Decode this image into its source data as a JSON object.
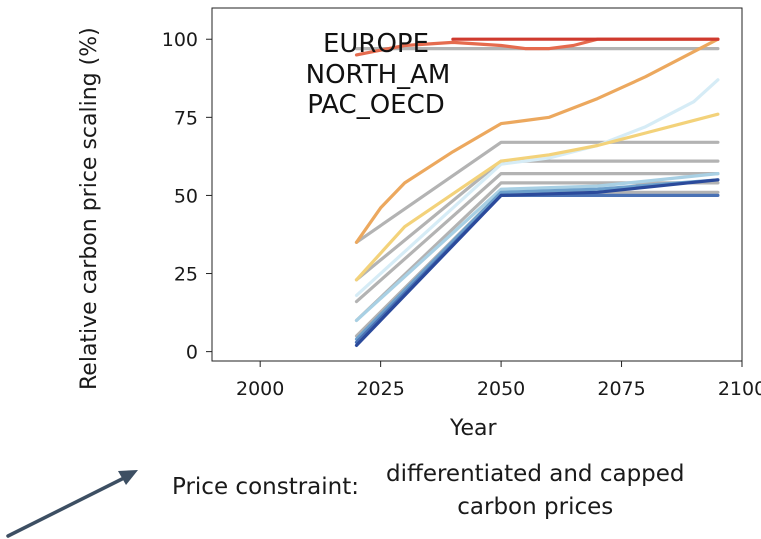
{
  "chart_data": {
    "type": "line",
    "xlabel": "Year",
    "ylabel": "Relative carbon price scaling (%)",
    "xlim": [
      1990,
      2100
    ],
    "ylim": [
      -3,
      110
    ],
    "xticks": [
      2000,
      2025,
      2050,
      2075,
      2100
    ],
    "yticks": [
      0,
      25,
      50,
      75,
      100
    ],
    "grid": false,
    "annotations": [
      "EUROPE",
      "NORTH_AM",
      "PAC_OECD"
    ],
    "series": [
      {
        "name": "grey-1",
        "color": "#b3b3b3",
        "x": [
          2020,
          2050,
          2095
        ],
        "y": [
          35,
          67,
          67
        ]
      },
      {
        "name": "grey-2",
        "color": "#b3b3b3",
        "x": [
          2020,
          2050,
          2095
        ],
        "y": [
          23,
          61,
          61
        ]
      },
      {
        "name": "grey-3",
        "color": "#b3b3b3",
        "x": [
          2020,
          2050,
          2095
        ],
        "y": [
          16,
          57,
          57
        ]
      },
      {
        "name": "grey-4",
        "color": "#b3b3b3",
        "x": [
          2020,
          2050,
          2095
        ],
        "y": [
          10,
          54,
          54
        ]
      },
      {
        "name": "grey-5",
        "color": "#b3b3b3",
        "x": [
          2020,
          2050,
          2095
        ],
        "y": [
          5,
          51,
          51
        ]
      },
      {
        "name": "grey-top",
        "color": "#b3b3b3",
        "x": [
          2020,
          2030,
          2050,
          2095
        ],
        "y": [
          97,
          97,
          97,
          97
        ]
      },
      {
        "name": "pale-blue-rising",
        "color": "#d6ecf6",
        "x": [
          2020,
          2050,
          2060,
          2070,
          2080,
          2090,
          2095
        ],
        "y": [
          18,
          60,
          62,
          66,
          72,
          80,
          87
        ]
      },
      {
        "name": "light-blue",
        "color": "#a8d0e4",
        "x": [
          2020,
          2050,
          2070,
          2095
        ],
        "y": [
          10,
          52,
          53,
          57
        ]
      },
      {
        "name": "mid-blue",
        "color": "#6c9fcb",
        "x": [
          2020,
          2050,
          2070,
          2095
        ],
        "y": [
          4,
          51,
          52,
          55
        ]
      },
      {
        "name": "blue",
        "color": "#4a72b5",
        "x": [
          2020,
          2050,
          2095
        ],
        "y": [
          3,
          50,
          50
        ]
      },
      {
        "name": "dark-blue",
        "color": "#2b4a9b",
        "x": [
          2020,
          2050,
          2070,
          2095
        ],
        "y": [
          2,
          50,
          51,
          55
        ]
      },
      {
        "name": "yellow",
        "color": "#f3d27a",
        "x": [
          2020,
          2030,
          2050,
          2060,
          2070,
          2080,
          2095
        ],
        "y": [
          23,
          40,
          61,
          63,
          66,
          70,
          76
        ]
      },
      {
        "name": "orange",
        "color": "#eca85e",
        "x": [
          2020,
          2025,
          2030,
          2035,
          2040,
          2050,
          2055,
          2060,
          2070,
          2080,
          2090,
          2095
        ],
        "y": [
          35,
          46,
          54,
          59,
          64,
          73,
          74,
          75,
          81,
          88,
          96,
          100
        ]
      },
      {
        "name": "coral",
        "color": "#e56b4e",
        "x": [
          2020,
          2030,
          2040,
          2050,
          2055,
          2060,
          2065,
          2070,
          2095
        ],
        "y": [
          95,
          98,
          99,
          98,
          97,
          97,
          98,
          100,
          100
        ]
      },
      {
        "name": "red",
        "color": "#cf3a2e",
        "x": [
          2040,
          2050,
          2095
        ],
        "y": [
          100,
          100,
          100
        ]
      }
    ]
  },
  "constraint": {
    "label": "Price constraint:",
    "value": "differentiated and capped\ncarbon prices"
  },
  "arrow_color": "#3d4f63"
}
